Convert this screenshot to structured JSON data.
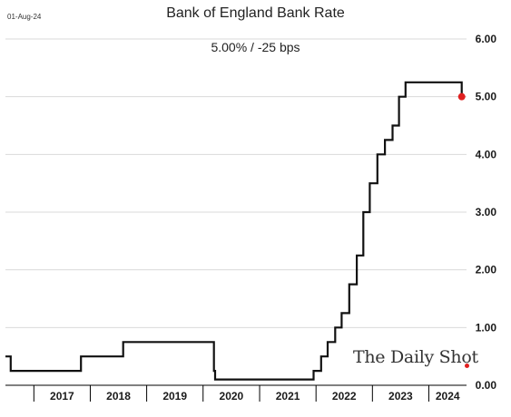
{
  "header": {
    "date_stamp": "01-Aug-24",
    "title": "Bank of England Bank Rate",
    "subtitle": "5.00%  /  -25 bps"
  },
  "watermark": {
    "text": "The Daily Shot"
  },
  "colors": {
    "line": "#111111",
    "marker": "#e02020",
    "grid": "#d9d9d9",
    "axis": "#000000"
  },
  "chart_data": {
    "type": "line",
    "title": "Bank of England Bank Rate",
    "subtitle": "5.00%  /  -25 bps",
    "xlabel": "",
    "ylabel": "",
    "y_axis_position": "right",
    "ylim": [
      0,
      6
    ],
    "xlim": [
      "2016-07-01",
      "2024-09-01"
    ],
    "yticks": [
      0,
      1,
      2,
      3,
      4,
      5,
      6
    ],
    "ytick_labels": [
      "0.00",
      "1.00",
      "2.00",
      "3.00",
      "4.00",
      "5.00",
      "6.00"
    ],
    "x_categories": [
      "2017",
      "2018",
      "2019",
      "2020",
      "2021",
      "2022",
      "2023",
      "2024"
    ],
    "grid": "horizontal",
    "series": [
      {
        "step": true,
        "points": [
          [
            "2016-07-01",
            0.5
          ],
          [
            "2016-08-04",
            0.25
          ],
          [
            "2017-11-02",
            0.5
          ],
          [
            "2018-08-02",
            0.75
          ],
          [
            "2020-03-11",
            0.25
          ],
          [
            "2020-03-19",
            0.1
          ],
          [
            "2021-12-16",
            0.25
          ],
          [
            "2022-02-03",
            0.5
          ],
          [
            "2022-03-17",
            0.75
          ],
          [
            "2022-05-05",
            1.0
          ],
          [
            "2022-06-16",
            1.25
          ],
          [
            "2022-08-04",
            1.75
          ],
          [
            "2022-09-22",
            2.25
          ],
          [
            "2022-11-03",
            3.0
          ],
          [
            "2022-12-15",
            3.5
          ],
          [
            "2023-02-02",
            4.0
          ],
          [
            "2023-03-23",
            4.25
          ],
          [
            "2023-05-11",
            4.5
          ],
          [
            "2023-06-22",
            5.0
          ],
          [
            "2023-08-03",
            5.25
          ],
          [
            "2024-08-01",
            5.0
          ]
        ]
      }
    ],
    "last_point": {
      "x": "2024-08-01",
      "y": 5.0
    }
  }
}
